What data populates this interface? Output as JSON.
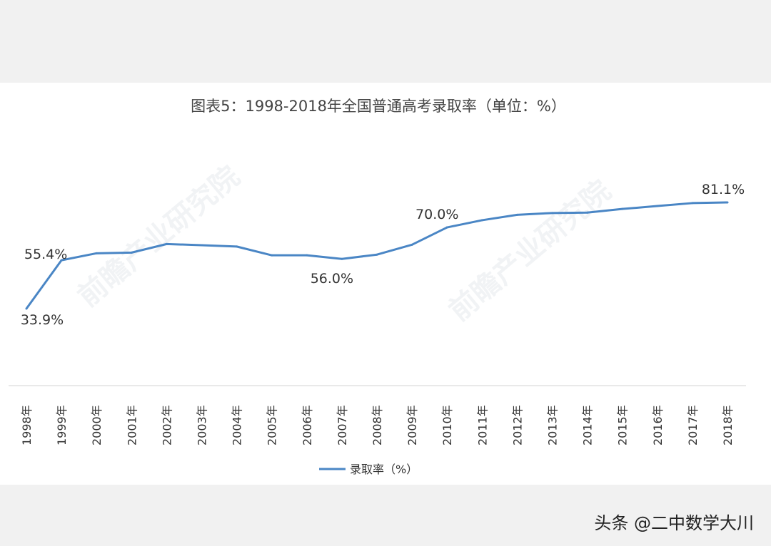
{
  "chart_data": {
    "type": "line",
    "title": "图表5：1998-2018年全国普通高考录取率（单位：%）",
    "categories": [
      "1998年",
      "1999年",
      "2000年",
      "2001年",
      "2002年",
      "2003年",
      "2004年",
      "2005年",
      "2006年",
      "2007年",
      "2008年",
      "2009年",
      "2010年",
      "2011年",
      "2012年",
      "2013年",
      "2014年",
      "2015年",
      "2016年",
      "2017年",
      "2018年"
    ],
    "series": [
      {
        "name": "录取率（%）",
        "color": "#4a86c5",
        "values": [
          33.9,
          55.4,
          58.5,
          58.8,
          62.6,
          62.1,
          61.5,
          57.6,
          57.6,
          56.0,
          57.9,
          62.3,
          70.0,
          73.2,
          75.6,
          76.4,
          76.6,
          78.2,
          79.5,
          80.8,
          81.1
        ]
      }
    ],
    "data_labels": [
      {
        "index": 0,
        "text": "33.9%"
      },
      {
        "index": 1,
        "text": "55.4%"
      },
      {
        "index": 9,
        "text": "56.0%"
      },
      {
        "index": 12,
        "text": "70.0%"
      },
      {
        "index": 20,
        "text": "81.1%"
      }
    ],
    "legend": "bottom",
    "grid": false,
    "ylim": [
      30,
      85
    ]
  },
  "watermark": "前瞻产业研究院",
  "credit": "头条 @二中数学大川"
}
